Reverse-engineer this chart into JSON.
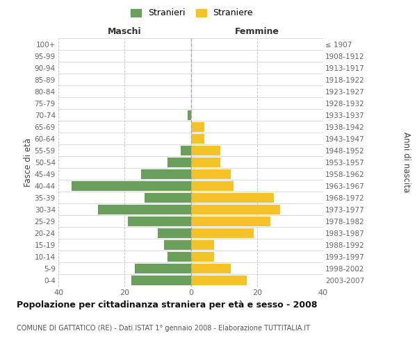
{
  "age_groups": [
    "0-4",
    "5-9",
    "10-14",
    "15-19",
    "20-24",
    "25-29",
    "30-34",
    "35-39",
    "40-44",
    "45-49",
    "50-54",
    "55-59",
    "60-64",
    "65-69",
    "70-74",
    "75-79",
    "80-84",
    "85-89",
    "90-94",
    "95-99",
    "100+"
  ],
  "birth_years": [
    "2003-2007",
    "1998-2002",
    "1993-1997",
    "1988-1992",
    "1983-1987",
    "1978-1982",
    "1973-1977",
    "1968-1972",
    "1963-1967",
    "1958-1962",
    "1953-1957",
    "1948-1952",
    "1943-1947",
    "1938-1942",
    "1933-1937",
    "1928-1932",
    "1923-1927",
    "1918-1922",
    "1913-1917",
    "1908-1912",
    "≤ 1907"
  ],
  "maschi": [
    18,
    17,
    7,
    8,
    10,
    19,
    28,
    14,
    36,
    15,
    7,
    3,
    0,
    0,
    1,
    0,
    0,
    0,
    0,
    0,
    0
  ],
  "femmine": [
    17,
    12,
    7,
    7,
    19,
    24,
    27,
    25,
    13,
    12,
    9,
    9,
    4,
    4,
    0,
    0,
    0,
    0,
    0,
    0,
    0
  ],
  "maschi_color": "#6a9e5b",
  "femmine_color": "#f5c327",
  "background_color": "#ffffff",
  "grid_color": "#cccccc",
  "title": "Popolazione per cittadinanza straniera per età e sesso - 2008",
  "subtitle": "COMUNE DI GATTATICO (RE) - Dati ISTAT 1° gennaio 2008 - Elaborazione TUTTITALIA.IT",
  "ylabel_left": "Fasce di età",
  "ylabel_right": "Anni di nascita",
  "xlabel_left": "Maschi",
  "xlabel_right": "Femmine",
  "legend_maschi": "Stranieri",
  "legend_femmine": "Straniere",
  "xlim": 40
}
